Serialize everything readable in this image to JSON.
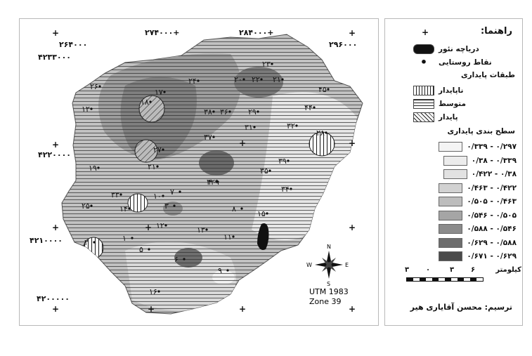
{
  "map": {
    "coords_top": [
      "+۲۷۴۰۰۰",
      "+۲۸۴۰۰۰"
    ],
    "coord_left_top": "۲۶۴۰۰۰",
    "coord_right_top": "۲۹۶۰۰۰",
    "coord_y_top": "۴۲۳۳۰۰۰",
    "coord_y_mid": "۴۲۲۰۰۰۰",
    "coord_y_low": "۴۲۱۰۰۰۰",
    "coord_y_bottom": "۴۲۰۰۰۰۰",
    "utm_line1": "UTM 1983",
    "utm_line2": "Zone 39",
    "compass": {
      "n": "N",
      "s": "S",
      "e": "E",
      "w": "W"
    },
    "point_labels": [
      "۲۳",
      "۲۲",
      "۲۱",
      "۲۰",
      "۲۶",
      "۱۷",
      "۱۸",
      "۲۴",
      "۳۸",
      "۳۶",
      "۲۹",
      "۳۱",
      "۴۵",
      "۴۴",
      "۱۲",
      "۳۷",
      "۲۷",
      "۳۲",
      "۲۸",
      "۱۹",
      "۲۱",
      "۳۹",
      "۳۵",
      "۲۲۹",
      "۳۴",
      "۳۳",
      "۱۰",
      "۷",
      "۲۵",
      "۱۴",
      "۳",
      "۸",
      "۱۵",
      "۱۲",
      "۱۳",
      "۱۱",
      "۱",
      "۲",
      "۵",
      "۶",
      "۹",
      "۱۶",
      "۴۰"
    ],
    "colors": {
      "light": "#e9e9e9",
      "mid1": "#c9c9c9",
      "mid2": "#a9a9a9",
      "dark1": "#8a8a8a",
      "dark2": "#5e5e5e",
      "lake": "#111111"
    }
  },
  "legend": {
    "title": "راهنما:",
    "lake": "دریاچه نئور",
    "villages": "نقاط روستایی",
    "classes_title": "طبقات پایداری",
    "classes": [
      "ناپایدار",
      "متوسط",
      "پایدار"
    ],
    "levels_title": "سطح بندی پایداری",
    "levels": [
      {
        "label": "۰/۲۹۷ - ۰/۳۳۹",
        "color": "#f4f4f4"
      },
      {
        "label": "۰/۳۳۹ - ۰/۳۸",
        "color": "#ececec"
      },
      {
        "label": "۰/۳۸ - ۰/۴۲۲",
        "color": "#e2e2e2"
      },
      {
        "label": "۰/۴۲۲ - ۰/۴۶۳",
        "color": "#d2d2d2"
      },
      {
        "label": "۰/۴۶۳ - ۰/۵۰۵",
        "color": "#bdbdbd"
      },
      {
        "label": "۰/۵۰۵ - ۰/۵۴۶",
        "color": "#a5a5a5"
      },
      {
        "label": "۰/۵۴۶ - ۰/۵۸۸",
        "color": "#8b8b8b"
      },
      {
        "label": "۰/۵۸۸ - ۰/۶۲۹",
        "color": "#6d6d6d"
      },
      {
        "label": "۰/۶۲۹ - ۰/۶۷۱",
        "color": "#4a4a4a"
      }
    ],
    "scale_unit": "کیلومتر",
    "scale_ticks": [
      "۶",
      "۳",
      "۰",
      "۳"
    ],
    "author": "ترسیم: محسن آقایاری هیر"
  }
}
